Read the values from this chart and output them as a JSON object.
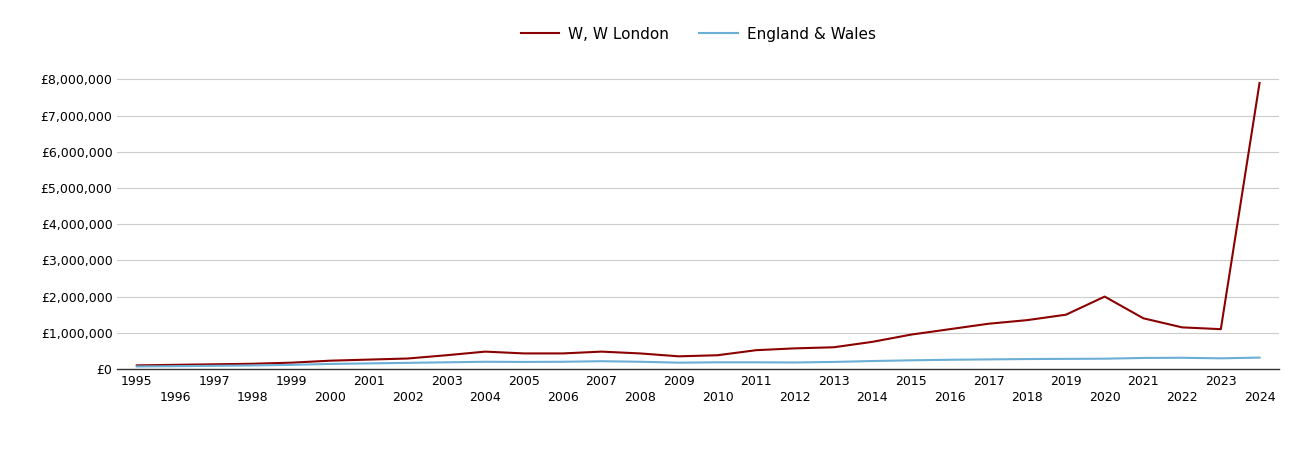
{
  "w_london_years": [
    1995,
    1996,
    1997,
    1998,
    1999,
    2000,
    2001,
    2002,
    2003,
    2004,
    2005,
    2006,
    2007,
    2008,
    2009,
    2010,
    2011,
    2012,
    2013,
    2014,
    2015,
    2016,
    2017,
    2018,
    2019,
    2020,
    2021,
    2022,
    2023,
    2024
  ],
  "w_london_values": [
    100000,
    115000,
    130000,
    145000,
    175000,
    230000,
    260000,
    290000,
    380000,
    480000,
    430000,
    430000,
    480000,
    430000,
    350000,
    380000,
    520000,
    570000,
    600000,
    750000,
    950000,
    1100000,
    1250000,
    1350000,
    1500000,
    2000000,
    1400000,
    1150000,
    1100000,
    7900000
  ],
  "eng_wales_years": [
    1995,
    1996,
    1997,
    1998,
    1999,
    2000,
    2001,
    2002,
    2003,
    2004,
    2005,
    2006,
    2007,
    2008,
    2009,
    2010,
    2011,
    2012,
    2013,
    2014,
    2015,
    2016,
    2017,
    2018,
    2019,
    2020,
    2021,
    2022,
    2023,
    2024
  ],
  "eng_wales_values": [
    70000,
    78000,
    88000,
    98000,
    115000,
    140000,
    155000,
    170000,
    185000,
    200000,
    195000,
    200000,
    215000,
    200000,
    175000,
    185000,
    185000,
    180000,
    195000,
    220000,
    240000,
    255000,
    265000,
    275000,
    280000,
    285000,
    305000,
    310000,
    295000,
    315000
  ],
  "w_london_color": "#8B0000",
  "eng_wales_color": "#6BAED6",
  "background_color": "#ffffff",
  "grid_color": "#cccccc",
  "ylim": [
    0,
    8700000
  ],
  "yticks": [
    0,
    1000000,
    2000000,
    3000000,
    4000000,
    5000000,
    6000000,
    7000000,
    8000000
  ],
  "legend_w_london": "W, W London",
  "legend_eng_wales": "England & Wales",
  "line_width": 1.5
}
